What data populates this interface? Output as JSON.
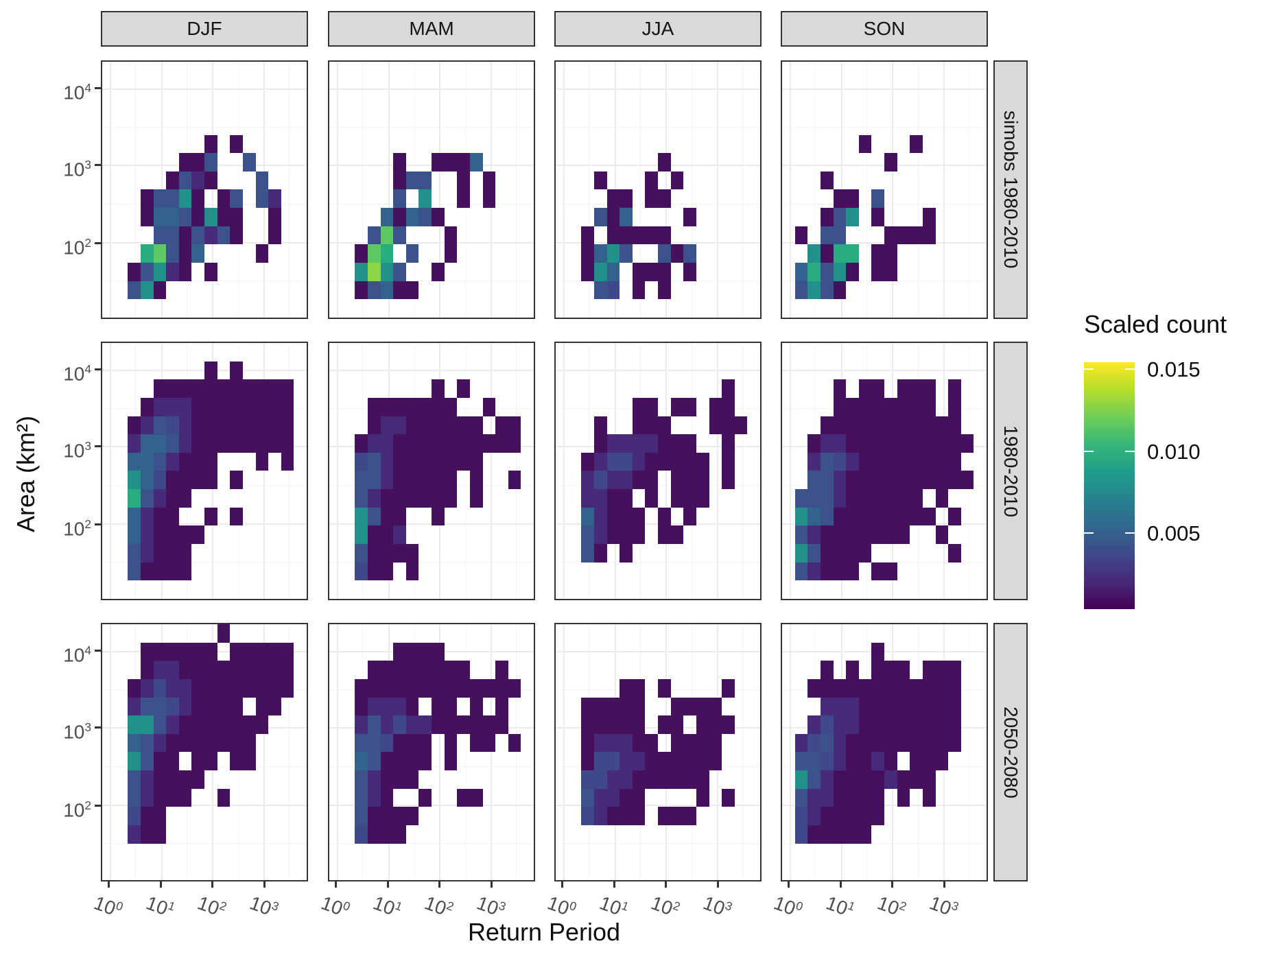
{
  "figure": {
    "x_axis_title": "Return Period",
    "y_axis_title": "Area (km²)"
  },
  "facets": {
    "cols": [
      "DJF",
      "MAM",
      "JJA",
      "SON"
    ],
    "rows": [
      "simobs 1980-2010",
      "1980-2010",
      "2050-2080"
    ]
  },
  "axes": {
    "x": {
      "label": "Return Period",
      "scale": "log10",
      "ticks": [
        "10^0",
        "10^1",
        "10^2",
        "10^3"
      ],
      "tick_pct": [
        3.7,
        28.8,
        53.8,
        78.9
      ],
      "minor_pct": [
        16.2,
        41.3,
        66.4,
        91.4
      ]
    },
    "y": {
      "label": "Area (km²)",
      "scale": "log10",
      "ticks": [
        "10^4",
        "10^3",
        "10^2"
      ],
      "tick_pct": [
        10.5,
        40.2,
        70.5
      ],
      "minor_pct": [
        25.4,
        55.4,
        85.5
      ]
    }
  },
  "legend": {
    "title": "Scaled count",
    "labels": [
      "0.015",
      "0.010",
      "0.005"
    ],
    "label_values": [
      0.015,
      0.01,
      0.005
    ],
    "gradient_top_to_bottom": [
      "#fde725",
      "#b5de2b",
      "#6ece58",
      "#35b779",
      "#1f9e89",
      "#26828e",
      "#31688e",
      "#3e4989",
      "#482878",
      "#440154"
    ],
    "range": [
      0.0,
      0.0155
    ]
  },
  "chart_data": {
    "type": "heatmap",
    "geom": "bin2d on log10(x), log10(y); 16 column bins x 14 row bins per facet panel",
    "x_binning": "log10(return_period) ≈ 0.25*(col_index - 0.7), bin width 0.25 decades; x range ~10^0 .. 10^3.6",
    "y_binning": "log10(area_km2) ≈ 4.4 - 0.25*(row_index - 1.6), bin height 0.25 decades; rows listed top→bottom; y range ~10^1.6 .. 10^4.6",
    "value_levels": {
      "1": 0.001,
      "2": 0.0022,
      "3": 0.0032,
      "4": 0.0042,
      "5": 0.0052,
      "6": 0.007,
      "7": 0.0085,
      "8": 0.011,
      "9": 0.013
    },
    "palette": {
      "1": "#46105c",
      "2": "#472a7a",
      "3": "#3f4889",
      "4": "#3b528b",
      "5": "#33638d",
      "6": "#21918c",
      "7": "#27ad81",
      "8": "#5ec962",
      "9": "#8bd646"
    },
    "panels": [
      {
        "row": 0,
        "col": 0,
        "season": "DJF",
        "period": "simobs 1980-2010",
        "grid": [
          "................",
          "................",
          "................",
          "................",
          "........1.1.....",
          "......114..4....",
          ".....1421...4...",
          "...14461.14.42..",
          "...15541611..1..",
          "....4414241..1..",
          "...78415....1...",
          "..14621.1.......",
          "..461...........",
          "................"
        ]
      },
      {
        "row": 0,
        "col": 1,
        "season": "MAM",
        "period": "simobs 1980-2010",
        "grid": [
          "................",
          "................",
          "................",
          "................",
          "................",
          ".....1..1115....",
          ".....144..1.1...",
          ".....4.6..1.1...",
          "....51541.......",
          "...484...1......",
          "..187.4..1......",
          "..6964..1.......",
          "..14511.........",
          "................"
        ]
      },
      {
        "row": 0,
        "col": 2,
        "season": "JJA",
        "period": "simobs 1980-2010",
        "grid": [
          "................",
          "................",
          "................",
          "................",
          "................",
          "........1.......",
          "...1...1.1......",
          "....11.11.......",
          "...415....1.....",
          "..1.11111.......",
          "..1564..414.....",
          "..165.111.1.....",
          "...43.1.1.......",
          "................"
        ]
      },
      {
        "row": 0,
        "col": 3,
        "season": "SON",
        "period": "simobs 1980-2010",
        "grid": [
          "................",
          "................",
          "................",
          "................",
          "......1...1.....",
          "........1.......",
          "...1............",
          "....11.4........",
          "...146.1...1....",
          ".1.44...1111....",
          "..6177.11.......",
          ".57461.11.......",
          ".4641...........",
          "................"
        ]
      },
      {
        "row": 1,
        "col": 0,
        "season": "DJF",
        "period": "1980-2010",
        "grid": [
          "................",
          "........1.1.....",
          "....11111111111.",
          "...122211111111.",
          "..1243211111111.",
          "..2554211111111.",
          "..5542111...1.1.",
          "..6531111.1.....",
          "..74211.........",
          "..5211..1.1.....",
          "..521111........",
          "..42111.........",
          "..41111.........",
          "................"
        ]
      },
      {
        "row": 1,
        "col": 1,
        "season": "MAM",
        "period": "1980-2010",
        "grid": [
          "................",
          "................",
          "........1.1.....",
          "...1111111..1...",
          "...122111111.11.",
          "..1221111111111.",
          "..3421111111....",
          "..44211111.1..1.",
          "..42111111.1....",
          "..6411..1.......",
          "..6112..........",
          "..41111.........",
          "..311.1.........",
          "................"
        ]
      },
      {
        "row": 1,
        "col": 2,
        "season": "JJA",
        "period": "1980-2010",
        "grid": [
          "................",
          "................",
          ".............1..",
          "......11.11.11..",
          "...1..111...111.",
          "...12222111..1..",
          "..1233211111.1..",
          "..232211.111.1..",
          "..2211.1.111....",
          "..52111.1.1.....",
          "..42111.11......",
          "..41.1..........",
          "................",
          "................"
        ]
      },
      {
        "row": 1,
        "col": 3,
        "season": "SON",
        "period": "1980-2010",
        "grid": [
          "................",
          "................",
          "....1.11.111.1..",
          "....11111111.1..",
          "...11111111111..",
          "..1221111111111.",
          "..243211111111..",
          "..4421111111111.",
          ".4442111111.1...",
          ".65411111111.1..",
          ".421111111..1...",
          ".641111......1..",
          ".42111.11.......",
          "................"
        ]
      },
      {
        "row": 2,
        "col": 0,
        "season": "DJF",
        "period": "2050-2080",
        "grid": [
          ".........1......",
          "...111111.11111.",
          "...122111111111.",
          "..1232211111111.",
          "..244321111.11..",
          "..66421111111...",
          "..5421111111....",
          "..6411.11.11....",
          "..421111........",
          "..42111..1......",
          "..311...........",
          "..211...........",
          "................",
          "................"
        ]
      },
      {
        "row": 2,
        "col": 1,
        "season": "MAM",
        "period": "2050-2080",
        "grid": [
          "................",
          ".....1111.......",
          "...11111111..1..",
          "..1111111111111.",
          "..12221.11.1.1..",
          "..242322111111..",
          "..443111.1.11.1.",
          "..541111.1......",
          "..42111.........",
          "..421..1..11....",
          "..41111.........",
          "..3111..........",
          "................",
          "................"
        ]
      },
      {
        "row": 2,
        "col": 2,
        "season": "JJA",
        "period": "2050-2080",
        "grid": [
          "................",
          "................",
          "................",
          ".....11.1....1..",
          "..11111..1111...",
          "..11111.11.111..",
          "..122211.1111...",
          "..13322111111...",
          "..3322111111....",
          "..42211....1.1..",
          "..32111.111.....",
          "................",
          "................",
          "................"
        ]
      },
      {
        "row": 2,
        "col": 3,
        "season": "SON",
        "period": "2050-2080",
        "grid": [
          "................",
          ".......1........",
          "...1.1.111.111..",
          "..111111111111..",
          "...22211111111..",
          "..232211111111..",
          ".2342111111111..",
          ".44321121.111...",
          ".64211112111....",
          ".4221111.1.1....",
          ".3211111........",
          ".311111.........",
          "................",
          "................"
        ]
      }
    ]
  }
}
